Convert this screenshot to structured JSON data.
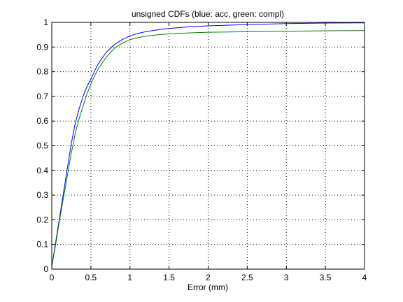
{
  "chart_data": {
    "type": "line",
    "title": "unsigned CDFs (blue: acc, green: compl)",
    "xlabel": "Error (mm)",
    "ylabel": "",
    "xlim": [
      0,
      4
    ],
    "ylim": [
      0,
      1
    ],
    "xticks": [
      0,
      0.5,
      1,
      1.5,
      2,
      2.5,
      3,
      3.5,
      4
    ],
    "xtick_labels": [
      "0",
      "0.5",
      "1",
      "1.5",
      "2",
      "2.5",
      "3",
      "3.5",
      "4"
    ],
    "yticks": [
      0,
      0.1,
      0.2,
      0.3,
      0.4,
      0.5,
      0.6,
      0.7,
      0.8,
      0.9,
      1
    ],
    "ytick_labels": [
      "0",
      "0.1",
      "0.2",
      "0.3",
      "0.4",
      "0.5",
      "0.6",
      "0.7",
      "0.8",
      "0.9",
      "1"
    ],
    "grid": true,
    "series": [
      {
        "color": "#0000ff",
        "x": [
          0,
          0.05,
          0.1,
          0.15,
          0.2,
          0.25,
          0.3,
          0.35,
          0.4,
          0.45,
          0.5,
          0.55,
          0.6,
          0.7,
          0.8,
          0.9,
          1.0,
          1.1,
          1.2,
          1.4,
          1.6,
          1.8,
          2.0,
          2.5,
          3.0,
          3.5,
          4.0
        ],
        "y": [
          0.01,
          0.11,
          0.21,
          0.31,
          0.41,
          0.51,
          0.59,
          0.65,
          0.7,
          0.74,
          0.77,
          0.805,
          0.835,
          0.88,
          0.91,
          0.93,
          0.945,
          0.955,
          0.962,
          0.972,
          0.978,
          0.983,
          0.986,
          0.991,
          0.995,
          0.997,
          0.998
        ]
      },
      {
        "color": "#008000",
        "x": [
          0,
          0.05,
          0.1,
          0.15,
          0.2,
          0.25,
          0.3,
          0.35,
          0.4,
          0.45,
          0.5,
          0.55,
          0.6,
          0.7,
          0.8,
          0.9,
          1.0,
          1.1,
          1.2,
          1.4,
          1.6,
          1.8,
          2.0,
          2.5,
          3.0,
          3.5,
          4.0
        ],
        "y": [
          0.01,
          0.1,
          0.2,
          0.29,
          0.38,
          0.47,
          0.55,
          0.61,
          0.66,
          0.71,
          0.75,
          0.785,
          0.815,
          0.86,
          0.895,
          0.915,
          0.93,
          0.938,
          0.944,
          0.951,
          0.955,
          0.958,
          0.96,
          0.962,
          0.964,
          0.966,
          0.967
        ]
      }
    ]
  }
}
